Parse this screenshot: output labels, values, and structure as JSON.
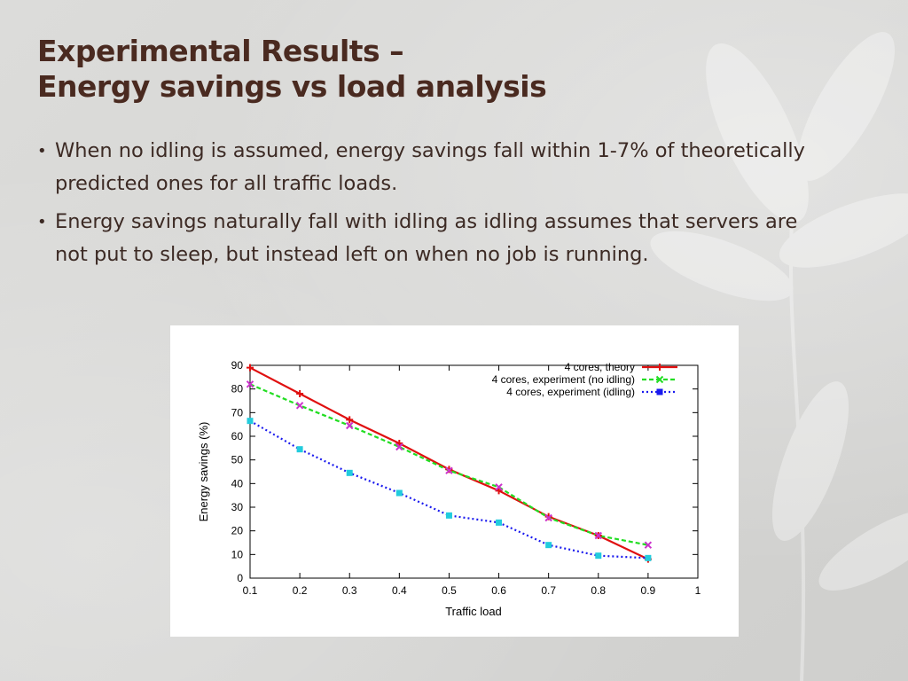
{
  "slide": {
    "title_line1": "Experimental Results –",
    "title_line2": "Energy savings vs load analysis",
    "bullets": [
      "When no idling is assumed, energy savings fall within 1-7% of theoretically predicted ones for all traffic loads.",
      "Energy savings naturally fall with idling as idling assumes that servers are not put to sleep, but instead left on when no job is running."
    ],
    "bullet_glyph": "•"
  },
  "chart_data": {
    "type": "line",
    "xlabel": "Traffic load",
    "ylabel": "Energy savings (%)",
    "xlim": [
      0.1,
      1
    ],
    "ylim": [
      0,
      90
    ],
    "x_ticks": [
      "0.1",
      "0.2",
      "0.3",
      "0.4",
      "0.5",
      "0.6",
      "0.7",
      "0.8",
      "0.9",
      "1"
    ],
    "y_ticks": [
      "0",
      "10",
      "20",
      "30",
      "40",
      "50",
      "60",
      "70",
      "80",
      "90"
    ],
    "grid": false,
    "legend_position": "top-right",
    "x": [
      0.1,
      0.2,
      0.3,
      0.4,
      0.5,
      0.6,
      0.7,
      0.8,
      0.9
    ],
    "series": [
      {
        "name": "4 cores, theory",
        "values": [
          89,
          78,
          67,
          57,
          46,
          37,
          26,
          18,
          8
        ],
        "color": "#e01010",
        "dash": "solid",
        "marker_color": "#e01010"
      },
      {
        "name": "4 cores, experiment (no idling)",
        "values": [
          82,
          73,
          64.5,
          55.5,
          45.5,
          38.5,
          25.5,
          18,
          14
        ],
        "color": "#22dd22",
        "dash": "dashed",
        "marker_color": "#cc33cc"
      },
      {
        "name": "4 cores, experiment (idling)",
        "values": [
          66.5,
          54.5,
          44.5,
          36,
          26.5,
          23.5,
          14,
          9.5,
          8.5
        ],
        "color": "#1a1aee",
        "dash": "dotted",
        "marker_color": "#22ccdd"
      }
    ]
  }
}
